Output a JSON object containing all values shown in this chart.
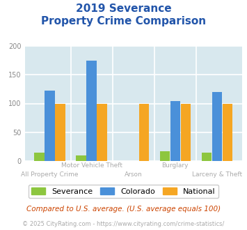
{
  "title_line1": "2019 Severance",
  "title_line2": "Property Crime Comparison",
  "title_color": "#2255aa",
  "categories": [
    "All Property Crime",
    "Motor Vehicle Theft",
    "Arson",
    "Burglary",
    "Larceny & Theft"
  ],
  "top_labels": [
    "Motor Vehicle Theft",
    "Burglary"
  ],
  "bottom_labels": [
    "All Property Crime",
    "Arson",
    "Larceny & Theft"
  ],
  "severance": [
    14,
    10,
    0,
    17,
    14
  ],
  "colorado": [
    123,
    175,
    0,
    104,
    120
  ],
  "national": [
    100,
    100,
    100,
    100,
    100
  ],
  "bar_colors": {
    "severance": "#8dc63f",
    "colorado": "#4a90d9",
    "national": "#f5a623"
  },
  "ylim": [
    0,
    200
  ],
  "yticks": [
    0,
    50,
    100,
    150,
    200
  ],
  "plot_bg": "#d8e8ee",
  "grid_color": "#ffffff",
  "legend_labels": [
    "Severance",
    "Colorado",
    "National"
  ],
  "footnote1": "Compared to U.S. average. (U.S. average equals 100)",
  "footnote2": "© 2025 CityRating.com - https://www.cityrating.com/crime-statistics/",
  "footnote1_color": "#cc4400",
  "footnote2_color": "#aaaaaa",
  "xtick_color": "#aaaaaa"
}
